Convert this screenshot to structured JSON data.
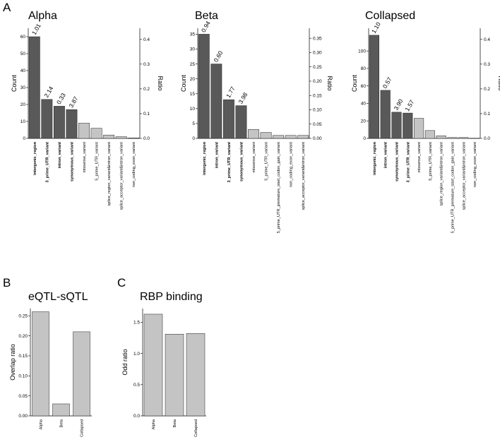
{
  "panel_labels": [
    "A",
    "B",
    "C"
  ],
  "chart_data": [
    {
      "id": "alpha",
      "type": "bar",
      "title": "Alpha",
      "ylabel": "Count",
      "y2label": "Ratio",
      "ylim": [
        0,
        65
      ],
      "yticks": [
        0,
        10,
        20,
        30,
        40,
        50,
        60
      ],
      "y2ticks": [
        "0.0",
        "0.1",
        "0.2",
        "0.3",
        "0.4"
      ],
      "y2max": 0.445,
      "categories": [
        "intergenic_region",
        "3_prime_UTR_variant",
        "intron_variant",
        "synonymous_variant",
        "missense_variant",
        "5_prime_UTR_variant",
        "splice_region_variant&intron_variant",
        "splice_acceptor_variant&intron_variant",
        "non_coding_exon_variant"
      ],
      "values": [
        60,
        23,
        19,
        17,
        9,
        6,
        2,
        1,
        0.3
      ],
      "highlight": [
        true,
        true,
        true,
        true,
        false,
        false,
        false,
        false,
        false
      ],
      "ratio_labels": [
        "1.01",
        "2.14",
        "0.33",
        "3.87",
        "",
        "",
        "",
        "",
        ""
      ]
    },
    {
      "id": "beta",
      "type": "bar",
      "title": "Beta",
      "ylabel": "Count",
      "y2label": "Ratio",
      "ylim": [
        0,
        37
      ],
      "yticks": [
        0,
        5,
        10,
        15,
        20,
        25,
        30,
        35
      ],
      "y2ticks": [
        "0.00",
        "0.05",
        "0.10",
        "0.15",
        "0.20",
        "0.25",
        "0.30",
        "0.35"
      ],
      "y2max": 0.385,
      "categories": [
        "intergenic_region",
        "intron_variant",
        "3_prime_UTR_variant",
        "synonymous_variant",
        "missense_variant",
        "5_prime_UTR_variant",
        "5_prime_UTR_premature_start_codon_gain_variant",
        "non_coding_exon_variant",
        "splice_acceptor_variant&intron_variant"
      ],
      "values": [
        35,
        25,
        13,
        11,
        3,
        2,
        1,
        1,
        1
      ],
      "highlight": [
        true,
        true,
        true,
        true,
        false,
        false,
        false,
        false,
        false
      ],
      "ratio_labels": [
        "0.94",
        "0.60",
        "1.77",
        "3.98",
        "",
        "",
        "",
        "",
        ""
      ]
    },
    {
      "id": "collapsed",
      "type": "bar",
      "title": "Collapsed",
      "ylabel": "Count",
      "y2label": "Ratio",
      "ylim": [
        0,
        126
      ],
      "yticks": [
        0,
        20,
        40,
        60,
        80,
        100
      ],
      "y2ticks": [
        "0.0",
        "0.1",
        "0.2",
        "0.3",
        "0.4"
      ],
      "y2max": 0.445,
      "categories": [
        "intergenic_region",
        "intron_variant",
        "synonymous_variant",
        "3_prime_UTR_variant",
        "missense_variant",
        "5_prime_UTR_variant",
        "splice_region_variant&intron_variant",
        "5_prime_UTR_premature_start_codon_gain_variant",
        "splice_acceptor_variant&intron_variant",
        "non_coding_exon_variant"
      ],
      "values": [
        118,
        55,
        30,
        29,
        23,
        9,
        3,
        1,
        1,
        0.3
      ],
      "highlight": [
        true,
        true,
        true,
        true,
        false,
        false,
        false,
        false,
        false,
        false
      ],
      "ratio_labels": [
        "1.10",
        "0.57",
        "3.90",
        "1.57",
        "",
        "",
        "",
        "",
        "",
        ""
      ]
    },
    {
      "id": "eqtl",
      "type": "bar",
      "title": "eQTL-sQTL",
      "ylabel": "Overlap ratio",
      "ylim": [
        0,
        0.268
      ],
      "yticks": [
        "0.00",
        "0.05",
        "0.10",
        "0.15",
        "0.20",
        "0.25"
      ],
      "categories": [
        "Alpha",
        "Beta",
        "Collapsed"
      ],
      "values": [
        0.26,
        0.03,
        0.21
      ]
    },
    {
      "id": "rbp",
      "type": "bar",
      "title": "RBP binding",
      "ylabel": "Odd ratio",
      "ylim": [
        0,
        1.72
      ],
      "yticks": [
        "0.0",
        "0.5",
        "1.0",
        "1.5"
      ],
      "categories": [
        "Alpha",
        "Beta",
        "Collapsed"
      ],
      "values": [
        1.63,
        1.31,
        1.32
      ]
    }
  ]
}
